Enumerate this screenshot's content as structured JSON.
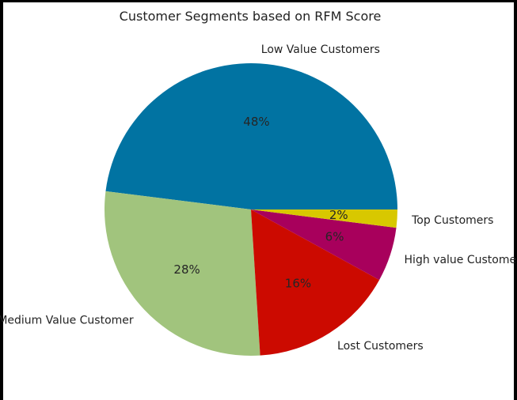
{
  "chart_data": {
    "type": "pie",
    "title": "Customer Segments based on RFM Score",
    "start_angle_deg": 0,
    "direction": "counterclockwise",
    "slices": [
      {
        "label": "Low Value Customers",
        "pct_label": "48%",
        "value": 48,
        "color": "#0173a2"
      },
      {
        "label": "Medium Value Customer",
        "pct_label": "28%",
        "value": 28,
        "color": "#a1c47d"
      },
      {
        "label": "Lost Customers",
        "pct_label": "16%",
        "value": 16,
        "color": "#cc0a00"
      },
      {
        "label": "High value Customer",
        "pct_label": "6%",
        "value": 6,
        "color": "#a8005c"
      },
      {
        "label": "Top Customers",
        "pct_label": "2%",
        "value": 2,
        "color": "#d8c800"
      }
    ]
  }
}
